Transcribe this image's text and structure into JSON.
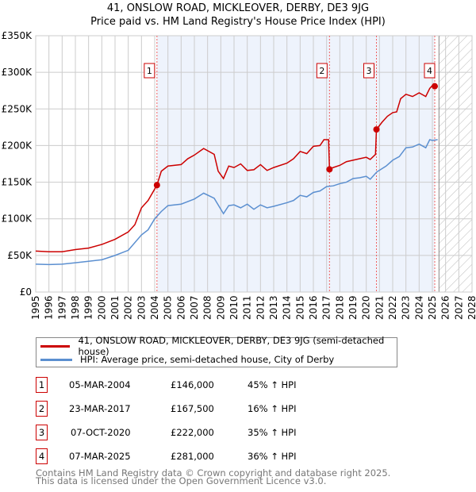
{
  "title_line1": "41, ONSLOW ROAD, MICKLEOVER, DERBY, DE3 9JG",
  "title_line2": "Price paid vs. HM Land Registry's House Price Index (HPI)",
  "chart_data": {
    "type": "line",
    "title": "41, ONSLOW ROAD, MICKLEOVER, DERBY, DE3 9JG — Price paid vs. HM Land Registry's House Price Index (HPI)",
    "xlim": [
      1995,
      2028
    ],
    "ylim": [
      0,
      350000
    ],
    "y_ticks": [
      {
        "v": 0,
        "label": "£0"
      },
      {
        "v": 50000,
        "label": "£50K"
      },
      {
        "v": 100000,
        "label": "£100K"
      },
      {
        "v": 150000,
        "label": "£150K"
      },
      {
        "v": 200000,
        "label": "£200K"
      },
      {
        "v": 250000,
        "label": "£250K"
      },
      {
        "v": 300000,
        "label": "£300K"
      },
      {
        "v": 350000,
        "label": "£350K"
      }
    ],
    "x_ticks": [
      "1995",
      "1996",
      "1997",
      "1998",
      "1999",
      "2000",
      "2001",
      "2002",
      "2003",
      "2004",
      "2005",
      "2006",
      "2007",
      "2008",
      "2009",
      "2010",
      "2011",
      "2012",
      "2013",
      "2014",
      "2015",
      "2016",
      "2017",
      "2018",
      "2019",
      "2020",
      "2021",
      "2022",
      "2023",
      "2024",
      "2025",
      "2026",
      "2027",
      "2028"
    ],
    "grid": true,
    "shaded_range": [
      2004.17,
      2025.18
    ],
    "forecast_hatch_from": 2025.5,
    "series": [
      {
        "name": "41, ONSLOW ROAD, MICKLEOVER, DERBY, DE3 9JG (semi-detached house)",
        "color": "#cc0000",
        "x": [
          1995,
          1996,
          1997,
          1998,
          1999,
          2000,
          2001,
          2002,
          2002.5,
          2003,
          2003.5,
          2004.17,
          2004.5,
          2005,
          2006,
          2006.5,
          2007,
          2007.7,
          2008.5,
          2008.8,
          2009.2,
          2009.6,
          2010,
          2010.5,
          2011,
          2011.5,
          2012,
          2012.5,
          2013,
          2014,
          2014.5,
          2015,
          2015.5,
          2016,
          2016.5,
          2016.8,
          2017.15,
          2017.22,
          2017.5,
          2018,
          2018.5,
          2019,
          2019.5,
          2020,
          2020.3,
          2020.7,
          2020.77,
          2021.2,
          2021.6,
          2022,
          2022.3,
          2022.6,
          2023,
          2023.5,
          2024,
          2024.5,
          2024.8,
          2025.1,
          2025.18,
          2025.4
        ],
        "y": [
          56000,
          55000,
          55000,
          58000,
          60000,
          65000,
          72000,
          82000,
          92000,
          115000,
          125000,
          146000,
          165000,
          172000,
          174000,
          182000,
          187000,
          196000,
          188000,
          165000,
          155000,
          172000,
          170000,
          175000,
          166000,
          167000,
          174000,
          166000,
          170000,
          176000,
          182000,
          192000,
          189000,
          199000,
          200000,
          208000,
          208000,
          167500,
          170000,
          173000,
          178000,
          180000,
          182000,
          184000,
          181000,
          188000,
          222000,
          232000,
          240000,
          245000,
          246000,
          264000,
          270000,
          267000,
          272000,
          267000,
          278000,
          284000,
          281000,
          280000
        ]
      },
      {
        "name": "HPI: Average price, semi-detached house, City of Derby",
        "color": "#5b8fd0",
        "x": [
          1995,
          1996,
          1997,
          1998,
          1999,
          2000,
          2001,
          2002,
          2003,
          2003.5,
          2004,
          2004.5,
          2005,
          2006,
          2007,
          2007.7,
          2008.5,
          2009.2,
          2009.6,
          2010,
          2010.5,
          2011,
          2011.5,
          2012,
          2012.5,
          2013,
          2014,
          2014.5,
          2015,
          2015.5,
          2016,
          2016.5,
          2017,
          2017.5,
          2018,
          2018.5,
          2019,
          2019.5,
          2020,
          2020.3,
          2020.8,
          2021.5,
          2022,
          2022.5,
          2023,
          2023.5,
          2024,
          2024.5,
          2024.8,
          2025,
          2025.4
        ],
        "y": [
          38000,
          37500,
          38000,
          40000,
          42000,
          44000,
          50000,
          57000,
          78000,
          85000,
          100000,
          110000,
          118000,
          120000,
          127000,
          135000,
          128000,
          107000,
          118000,
          119000,
          115000,
          120000,
          113000,
          119000,
          115000,
          117000,
          122000,
          125000,
          132000,
          130000,
          136000,
          138000,
          144000,
          145000,
          148000,
          150000,
          155000,
          156000,
          158000,
          154000,
          164000,
          172000,
          180000,
          185000,
          197000,
          198000,
          202000,
          197000,
          208000,
          207000,
          208000
        ]
      }
    ],
    "sales": [
      {
        "n": "1",
        "x": 2004.17,
        "y": 146000
      },
      {
        "n": "2",
        "x": 2017.22,
        "y": 167500
      },
      {
        "n": "3",
        "x": 2020.77,
        "y": 222000
      },
      {
        "n": "4",
        "x": 2025.18,
        "y": 281000
      }
    ]
  },
  "legend": [
    {
      "label": "41, ONSLOW ROAD, MICKLEOVER, DERBY, DE3 9JG (semi-detached house)",
      "color": "#cc0000"
    },
    {
      "label": "HPI: Average price, semi-detached house, City of Derby",
      "color": "#5b8fd0"
    }
  ],
  "transactions": [
    {
      "n": "1",
      "date": "05-MAR-2004",
      "price": "£146,000",
      "hpi": "45% ↑ HPI"
    },
    {
      "n": "2",
      "date": "23-MAR-2017",
      "price": "£167,500",
      "hpi": "16% ↑ HPI"
    },
    {
      "n": "3",
      "date": "07-OCT-2020",
      "price": "£222,000",
      "hpi": "35% ↑ HPI"
    },
    {
      "n": "4",
      "date": "07-MAR-2025",
      "price": "£281,000",
      "hpi": "36% ↑ HPI"
    }
  ],
  "footer_line1": "Contains HM Land Registry data © Crown copyright and database right 2025.",
  "footer_line2": "This data is licensed under the Open Government Licence v3.0."
}
